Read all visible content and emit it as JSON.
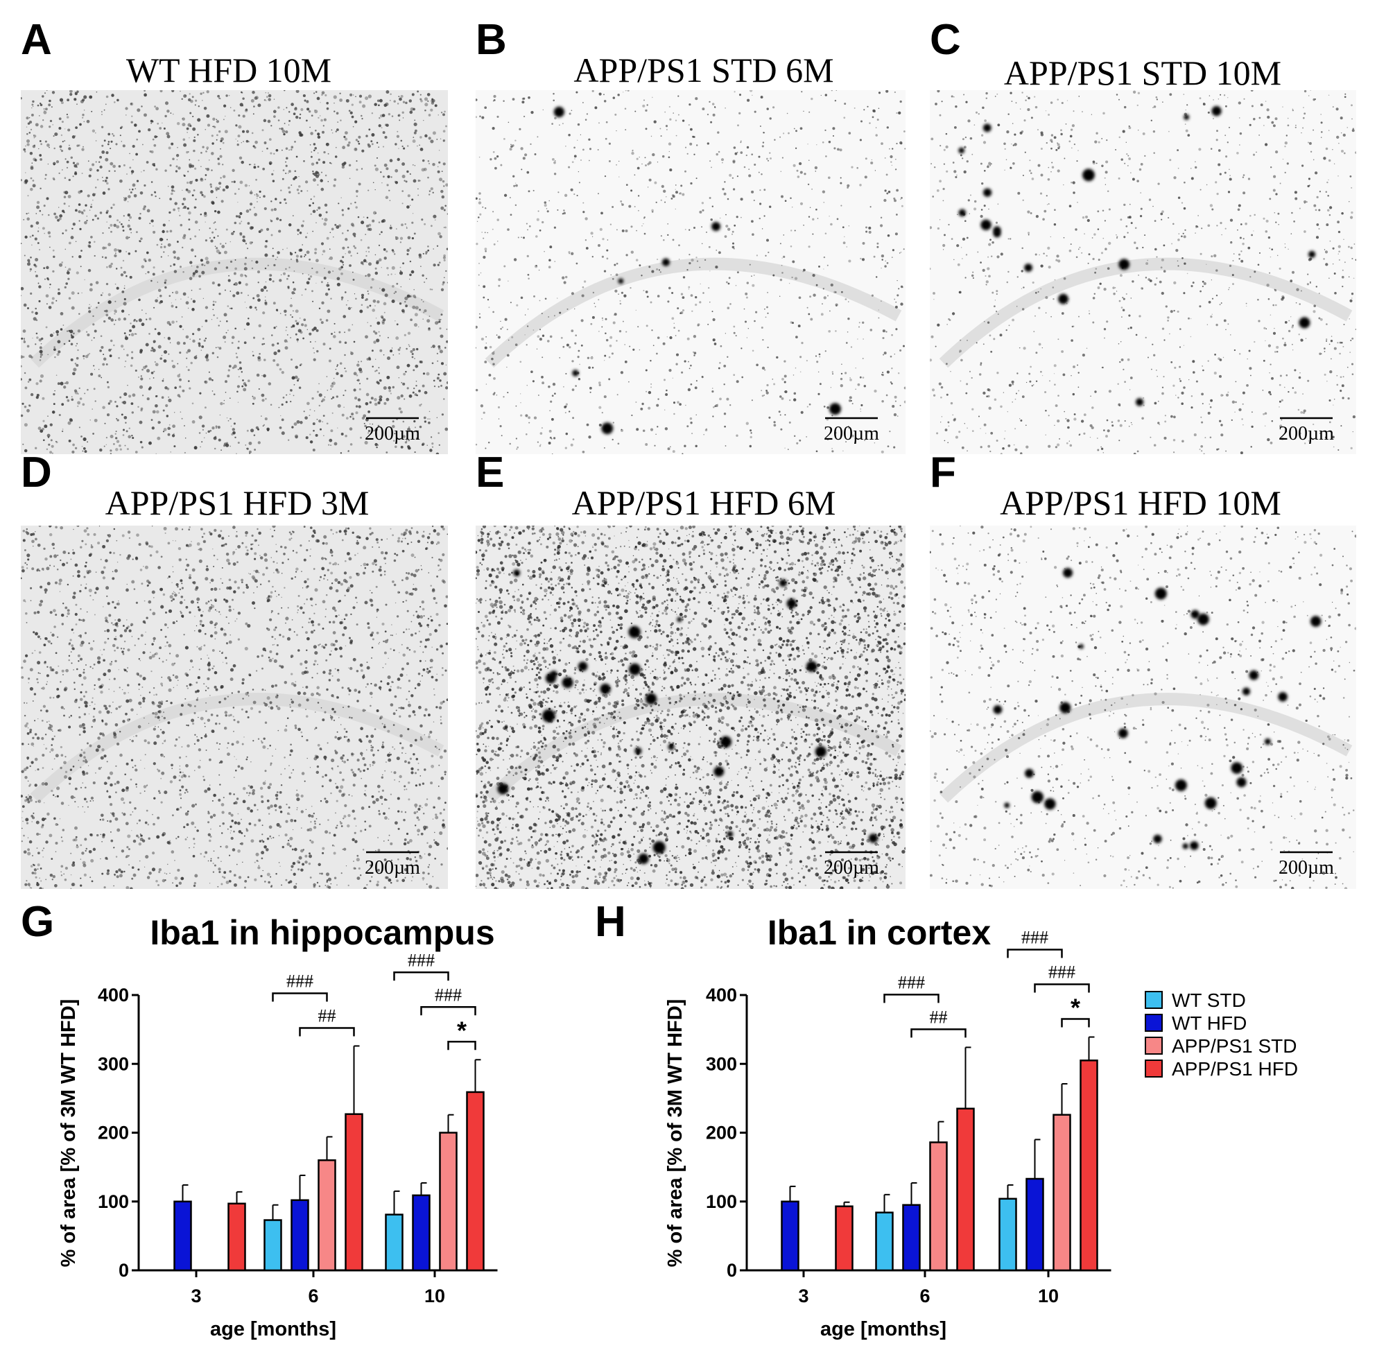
{
  "micrographs": [
    {
      "letter": "A",
      "title": "WT HFD 10M",
      "scale_bar": "200µm",
      "density": "uniform",
      "plaques": "none"
    },
    {
      "letter": "B",
      "title": "APP/PS1 STD 6M",
      "scale_bar": "200µm",
      "density": "sparse",
      "plaques": "few"
    },
    {
      "letter": "C",
      "title": "APP/PS1 STD 10M",
      "scale_bar": "200µm",
      "density": "sparse",
      "plaques": "several"
    },
    {
      "letter": "D",
      "title": "APP/PS1 HFD 3M",
      "scale_bar": "200µm",
      "density": "uniform",
      "plaques": "none"
    },
    {
      "letter": "E",
      "title": "APP/PS1 HFD 6M",
      "scale_bar": "200µm",
      "density": "dense",
      "plaques": "many"
    },
    {
      "letter": "F",
      "title": "APP/PS1 HFD 10M",
      "scale_bar": "200µm",
      "density": "sparse",
      "plaques": "many"
    }
  ],
  "legend": {
    "items": [
      {
        "label": "WT STD",
        "color": "#3dbff0"
      },
      {
        "label": "WT HFD",
        "color": "#0a14d6"
      },
      {
        "label": "APP/PS1 STD",
        "color": "#f78787"
      },
      {
        "label": "APP/PS1 HFD",
        "color": "#f03a3a"
      }
    ]
  },
  "chart_data": [
    {
      "letter": "G",
      "type": "bar",
      "title": "Iba1 in hippocampus",
      "xlabel": "age [months]",
      "ylabel": "% of area [% of 3M WT HFD]",
      "categories": [
        "3",
        "6",
        "10"
      ],
      "ylim": [
        0,
        400
      ],
      "yticks": [
        "0",
        "100",
        "200",
        "300",
        "400"
      ],
      "series": [
        {
          "name": "WT STD",
          "values": [
            null,
            73,
            81
          ],
          "errors": [
            null,
            22,
            34
          ]
        },
        {
          "name": "WT HFD",
          "values": [
            100,
            102,
            109
          ],
          "errors": [
            24,
            36,
            18
          ]
        },
        {
          "name": "APP/PS1 STD",
          "values": [
            null,
            160,
            200
          ],
          "errors": [
            null,
            34,
            26
          ]
        },
        {
          "name": "APP/PS1 HFD",
          "values": [
            97,
            227,
            259
          ],
          "errors": [
            17,
            99,
            47
          ]
        }
      ],
      "significance": [
        {
          "label": "##",
          "category": "6",
          "from": "WT HFD",
          "to": "APP/PS1 HFD"
        },
        {
          "label": "###",
          "category": "6",
          "from": "WT STD",
          "to": "APP/PS1 STD"
        },
        {
          "label": "*",
          "category": "10",
          "from": "APP/PS1 STD",
          "to": "APP/PS1 HFD"
        },
        {
          "label": "###",
          "category": "10",
          "from": "WT HFD",
          "to": "APP/PS1 HFD"
        },
        {
          "label": "###",
          "category": "10",
          "from": "WT STD",
          "to": "APP/PS1 STD"
        }
      ]
    },
    {
      "letter": "H",
      "type": "bar",
      "title": "Iba1 in cortex",
      "xlabel": "age [months]",
      "ylabel": "% of area [% of 3M WT HFD]",
      "categories": [
        "3",
        "6",
        "10"
      ],
      "ylim": [
        0,
        400
      ],
      "yticks": [
        "0",
        "100",
        "200",
        "300",
        "400"
      ],
      "series": [
        {
          "name": "WT STD",
          "values": [
            null,
            84,
            104
          ],
          "errors": [
            null,
            26,
            20
          ]
        },
        {
          "name": "WT HFD",
          "values": [
            100,
            95,
            133
          ],
          "errors": [
            22,
            32,
            57
          ]
        },
        {
          "name": "APP/PS1 STD",
          "values": [
            null,
            186,
            226
          ],
          "errors": [
            null,
            30,
            45
          ]
        },
        {
          "name": "APP/PS1 HFD",
          "values": [
            93,
            235,
            305
          ],
          "errors": [
            6,
            89,
            34
          ]
        }
      ],
      "significance": [
        {
          "label": "##",
          "category": "6",
          "from": "WT HFD",
          "to": "APP/PS1 HFD"
        },
        {
          "label": "###",
          "category": "6",
          "from": "WT STD",
          "to": "APP/PS1 STD"
        },
        {
          "label": "*",
          "category": "10",
          "from": "APP/PS1 STD",
          "to": "APP/PS1 HFD"
        },
        {
          "label": "###",
          "category": "10",
          "from": "WT HFD",
          "to": "APP/PS1 HFD"
        },
        {
          "label": "###",
          "category": "10",
          "from": "WT STD",
          "to": "APP/PS1 STD"
        }
      ]
    }
  ]
}
